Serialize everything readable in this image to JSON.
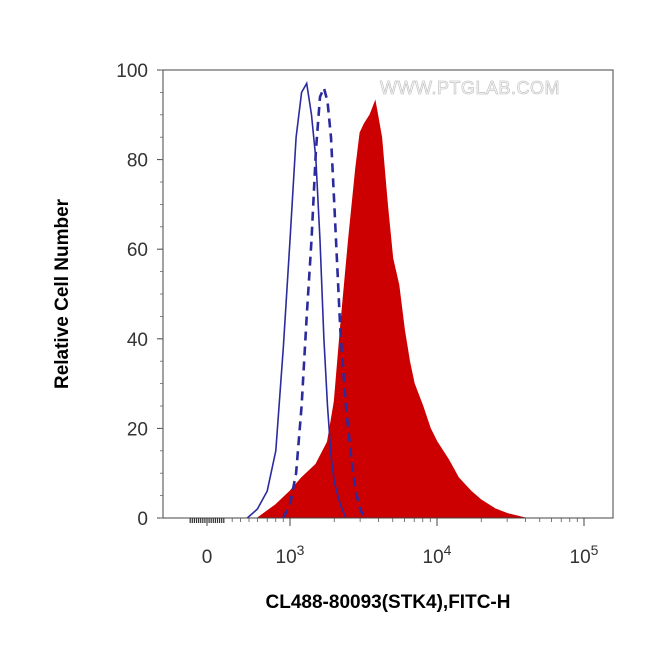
{
  "watermark": "WWW.PTGLAB.COM",
  "chart_data": {
    "type": "area",
    "xlabel": "CL488-80093(STK4),FITC-H",
    "ylabel": "Relative Cell Number",
    "x_scale": "biexponential",
    "xlim": [
      -200,
      150000
    ],
    "ylim": [
      0,
      100
    ],
    "x_ticks": [
      {
        "value": 0,
        "label": "0"
      },
      {
        "value": 1000,
        "base": "10",
        "exp": "3"
      },
      {
        "value": 10000,
        "base": "10",
        "exp": "4"
      },
      {
        "value": 100000,
        "base": "10",
        "exp": "5"
      }
    ],
    "y_ticks": [
      0,
      20,
      40,
      60,
      80,
      100
    ],
    "grid": false,
    "legend": "none",
    "series": [
      {
        "style": "solid-line",
        "color": "#2b2b9e",
        "x": [
          480,
          600,
          700,
          800,
          900,
          1000,
          1100,
          1200,
          1300,
          1400,
          1500,
          1600,
          1700,
          1800,
          1900,
          2000,
          2200,
          2400
        ],
        "y": [
          0,
          2,
          6,
          15,
          38,
          62,
          85,
          95,
          97,
          90,
          80,
          62,
          40,
          25,
          14,
          8,
          3,
          0
        ]
      },
      {
        "style": "dashed-line",
        "color": "#2b2b9e",
        "x": [
          900,
          1000,
          1100,
          1200,
          1300,
          1400,
          1500,
          1600,
          1700,
          1800,
          1900,
          2000,
          2200,
          2400,
          2600,
          2800,
          3000,
          3200
        ],
        "y": [
          0,
          3,
          10,
          25,
          45,
          62,
          82,
          94,
          96,
          93,
          85,
          70,
          42,
          25,
          14,
          6,
          2,
          0
        ]
      },
      {
        "style": "filled",
        "color": "#cc0000",
        "x": [
          600,
          800,
          1000,
          1200,
          1500,
          1800,
          2000,
          2200,
          2500,
          2800,
          3000,
          3200,
          3500,
          3800,
          4200,
          4600,
          5000,
          5500,
          6000,
          6500,
          7000,
          8000,
          9000,
          10000,
          12000,
          14000,
          17000,
          20000,
          25000,
          30000,
          40000
        ],
        "y": [
          0,
          3,
          6,
          9,
          12,
          17,
          26,
          42,
          62,
          78,
          86,
          88,
          90,
          93,
          85,
          70,
          58,
          52,
          42,
          35,
          30,
          25,
          20,
          17,
          13,
          9,
          6,
          4,
          2,
          1,
          0
        ]
      }
    ]
  }
}
